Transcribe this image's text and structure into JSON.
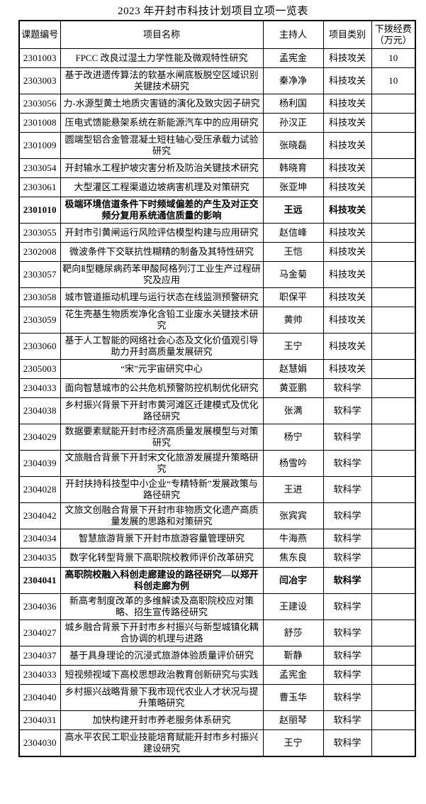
{
  "title": "2023 年开封市科技计划项目立项一览表",
  "table": {
    "headers": [
      "课题编号",
      "项目名称",
      "主持人",
      "项目类别",
      "下拨经费（万元）"
    ],
    "rows": [
      {
        "id": "2301003",
        "name": "FPCC 改良过湿土力学性能及微观特性研究",
        "leader": "孟宪金",
        "category": "科技攻关",
        "funding": "10",
        "bold": false
      },
      {
        "id": "2303003",
        "name": "基于改进遗传算法的软基水闸底板脱空区域识别关键技术研究",
        "leader": "秦净净",
        "category": "科技攻关",
        "funding": "10",
        "bold": false
      },
      {
        "id": "2303056",
        "name": "力-水源型黄土地质灾害链的演化及致灾因子研究",
        "leader": "杨利国",
        "category": "科技攻关",
        "funding": "",
        "bold": false
      },
      {
        "id": "2301008",
        "name": "压电式馈能悬架系统在新能源汽车中的应用研究",
        "leader": "孙汉正",
        "category": "科技攻关",
        "funding": "",
        "bold": false
      },
      {
        "id": "2301009",
        "name": "圆端型铝合金管混凝土短柱轴心受压承载力试验研究",
        "leader": "张晓磊",
        "category": "科技攻关",
        "funding": "",
        "bold": false
      },
      {
        "id": "2303054",
        "name": "开封输水工程护坡灾害分析及防治关键技术研究",
        "leader": "韩晓育",
        "category": "科技攻关",
        "funding": "",
        "bold": false
      },
      {
        "id": "2303061",
        "name": "大型灌区工程渠道边坡病害机理及对策研究",
        "leader": "张亚坤",
        "category": "科技攻关",
        "funding": "",
        "bold": false
      },
      {
        "id": "2301010",
        "name": "极端环境信道条件下时频域偏差的产生及对正交频分复用系统通信质量的影响",
        "leader": "王远",
        "category": "科技攻关",
        "funding": "",
        "bold": true
      },
      {
        "id": "2303055",
        "name": "开封市引黄闸运行风险评估模型构建与应用研究",
        "leader": "赵信峰",
        "category": "科技攻关",
        "funding": "",
        "bold": false
      },
      {
        "id": "2302008",
        "name": "微波条件下交联抗性糊精的制备及其特性研究",
        "leader": "王恺",
        "category": "科技攻关",
        "funding": "",
        "bold": false
      },
      {
        "id": "2303057",
        "name": "靶向Ⅱ型糖尿病药苯甲酸阿格列汀工业生产过程研究及应用",
        "leader": "马金菊",
        "category": "科技攻关",
        "funding": "",
        "bold": false
      },
      {
        "id": "2303058",
        "name": "城市管道振动机理与运行状态在线监测预警研究",
        "leader": "职保平",
        "category": "科技攻关",
        "funding": "",
        "bold": false
      },
      {
        "id": "2303059",
        "name": "花生壳基生物质炭净化含铅工业废水关键技术研究",
        "leader": "黄帅",
        "category": "科技攻关",
        "funding": "",
        "bold": false
      },
      {
        "id": "2303060",
        "name": "基于人工智能的网络社会心态及文化价值观引导助力开封高质量发展研究",
        "leader": "王宁",
        "category": "科技攻关",
        "funding": "",
        "bold": false
      },
      {
        "id": "2305003",
        "name": "“宋”元宇宙研究中心",
        "leader": "赵慧娟",
        "category": "科技攻关",
        "funding": "",
        "bold": false
      },
      {
        "id": "2304033",
        "name": "面向智慧城市的公共危机预警防控机制优化研究",
        "leader": "黄亚鹏",
        "category": "软科学",
        "funding": "",
        "bold": false
      },
      {
        "id": "2304038",
        "name": "乡村振兴背景下开封市黄河滩区迁建模式及优化路径研究",
        "leader": "张满",
        "category": "软科学",
        "funding": "",
        "bold": false
      },
      {
        "id": "2304029",
        "name": "数据要素赋能开封市经济高质量发展模型与对策研究",
        "leader": "杨宁",
        "category": "软科学",
        "funding": "",
        "bold": false
      },
      {
        "id": "2304039",
        "name": "文旅融合背景下开封宋文化旅游发展提升策略研究",
        "leader": "杨雪吟",
        "category": "软科学",
        "funding": "",
        "bold": false
      },
      {
        "id": "2304028",
        "name": "开封扶持科技型中小企业“专精特新”发展政策与路径研究",
        "leader": "王进",
        "category": "软科学",
        "funding": "",
        "bold": false
      },
      {
        "id": "2304042",
        "name": "文旅文创融合背景下开封市非物质文化遗产高质量发展的思路和对策研究",
        "leader": "张宾宾",
        "category": "软科学",
        "funding": "",
        "bold": false
      },
      {
        "id": "2304034",
        "name": "智慧旅游背景下开封市旅游容量管理研究",
        "leader": "牛海燕",
        "category": "软科学",
        "funding": "",
        "bold": false
      },
      {
        "id": "2304035",
        "name": "数字化转型背景下高职院校教师评价改革研究",
        "leader": "焦东良",
        "category": "软科学",
        "funding": "",
        "bold": false
      },
      {
        "id": "2304041",
        "name": "高职院校融入科创走廊建设的路径研究—以郑开科创走廊为例",
        "leader": "闫冶宇",
        "category": "软科学",
        "funding": "",
        "bold": true
      },
      {
        "id": "2304036",
        "name": "新高考制度改革的多维解读及高职院校应对策略、招生宣传路径研究",
        "leader": "王建设",
        "category": "软科学",
        "funding": "",
        "bold": false
      },
      {
        "id": "2304027",
        "name": "城乡融合背景下开封市乡村振兴与新型城镇化耦合协调的机理与进路",
        "leader": "舒莎",
        "category": "软科学",
        "funding": "",
        "bold": false
      },
      {
        "id": "2304037",
        "name": "基于具身理论的沉浸式旅游体验质量评价研究",
        "leader": "靳静",
        "category": "软科学",
        "funding": "",
        "bold": false
      },
      {
        "id": "2304033",
        "name": "短视频视域下高校思想政治教育创新研究与实践",
        "leader": "孟宪金",
        "category": "软科学",
        "funding": "",
        "bold": false
      },
      {
        "id": "2304040",
        "name": "乡村振兴战略背景下我市现代农业人才状况与提升策略研究",
        "leader": "曹玉华",
        "category": "软科学",
        "funding": "",
        "bold": false
      },
      {
        "id": "2304031",
        "name": "加快构建开封市养老服务体系研究",
        "leader": "赵丽琴",
        "category": "软科学",
        "funding": "",
        "bold": false
      },
      {
        "id": "2304030",
        "name": "高水平农民工职业技能培育赋能开封市乡村振兴建设研究",
        "leader": "王宁",
        "category": "软科学",
        "funding": "",
        "bold": false
      }
    ]
  }
}
